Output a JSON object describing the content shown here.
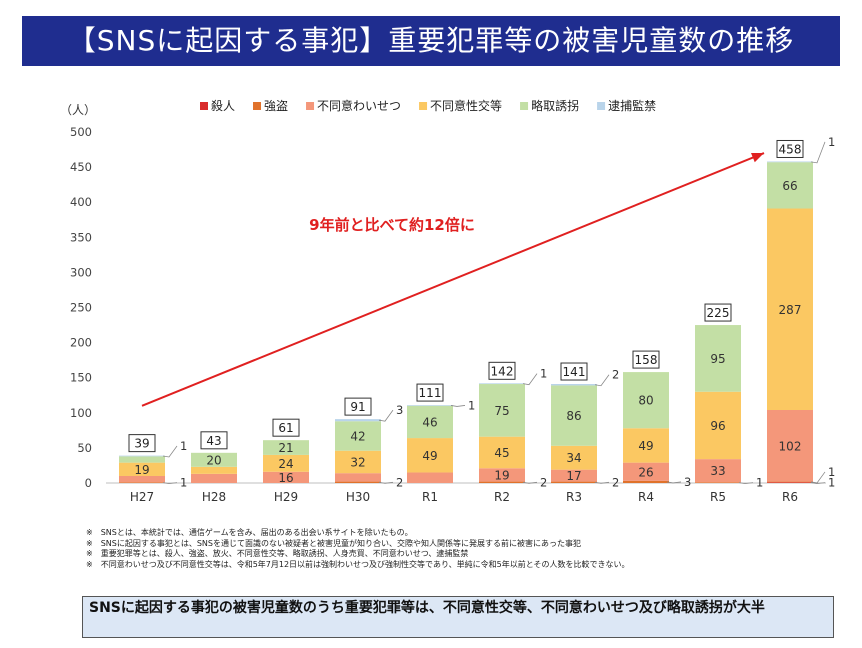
{
  "title": "【SNSに起因する事犯】重要犯罪等の被害児童数の推移",
  "chart_data": {
    "type": "bar",
    "stacked": true,
    "unit_label": "（人）",
    "categories": [
      "H27",
      "H28",
      "H29",
      "H30",
      "R1",
      "R2",
      "R3",
      "R4",
      "R5",
      "R6"
    ],
    "series": [
      {
        "name": "殺人",
        "color": "#d92b2b",
        "values": [
          0,
          0,
          0,
          0,
          0,
          0,
          0,
          0,
          0,
          1
        ]
      },
      {
        "name": "強盗",
        "color": "#e0722b",
        "values": [
          1,
          0,
          0,
          2,
          0,
          2,
          2,
          3,
          1,
          1
        ]
      },
      {
        "name": "不同意わいせつ",
        "color": "#f4977a",
        "values": [
          9,
          13,
          16,
          12,
          15,
          19,
          17,
          26,
          33,
          102
        ]
      },
      {
        "name": "不同意性交等",
        "color": "#fbc862",
        "values": [
          19,
          10,
          24,
          32,
          49,
          45,
          34,
          49,
          96,
          287
        ]
      },
      {
        "name": "略取誘拐",
        "color": "#c3dfa5",
        "values": [
          9,
          20,
          21,
          42,
          46,
          75,
          86,
          80,
          95,
          66
        ]
      },
      {
        "name": "逮捕監禁",
        "color": "#b9d4ea",
        "values": [
          1,
          0,
          0,
          3,
          1,
          1,
          2,
          0,
          0,
          1
        ]
      }
    ],
    "totals": [
      39,
      43,
      61,
      91,
      111,
      142,
      141,
      158,
      225,
      458
    ],
    "ylim": [
      0,
      500
    ],
    "yticks": [
      0,
      50,
      100,
      150,
      200,
      250,
      300,
      350,
      400,
      450,
      500
    ],
    "grid": false,
    "legend": "top",
    "annotation": "9年前と比べて約12倍に",
    "arrow_color": "#e02020"
  },
  "notes": [
    "※　SNSとは、本統計では、通信ゲームを含み、届出のある出会い系サイトを除いたもの。",
    "※　SNSに起因する事犯とは、SNSを通じて面識のない被疑者と被害児童が知り合い、交際や知人関係等に発展する前に被害にあった事犯",
    "※　重要犯罪等とは、殺人、強盗、放火、不同意性交等、略取誘拐、人身売買、不同意わいせつ、逮捕監禁",
    "※　不同意わいせつ及び不同意性交等は、令和5年7月12日以前は強制わいせつ及び強制性交等であり、単純に令和5年以前とその人数を比較できない。"
  ],
  "summary": "SNSに起因する事犯の被害児童数のうち重要犯罪等は、不同意性交等、不同意わいせつ及び略取誘拐が大半"
}
